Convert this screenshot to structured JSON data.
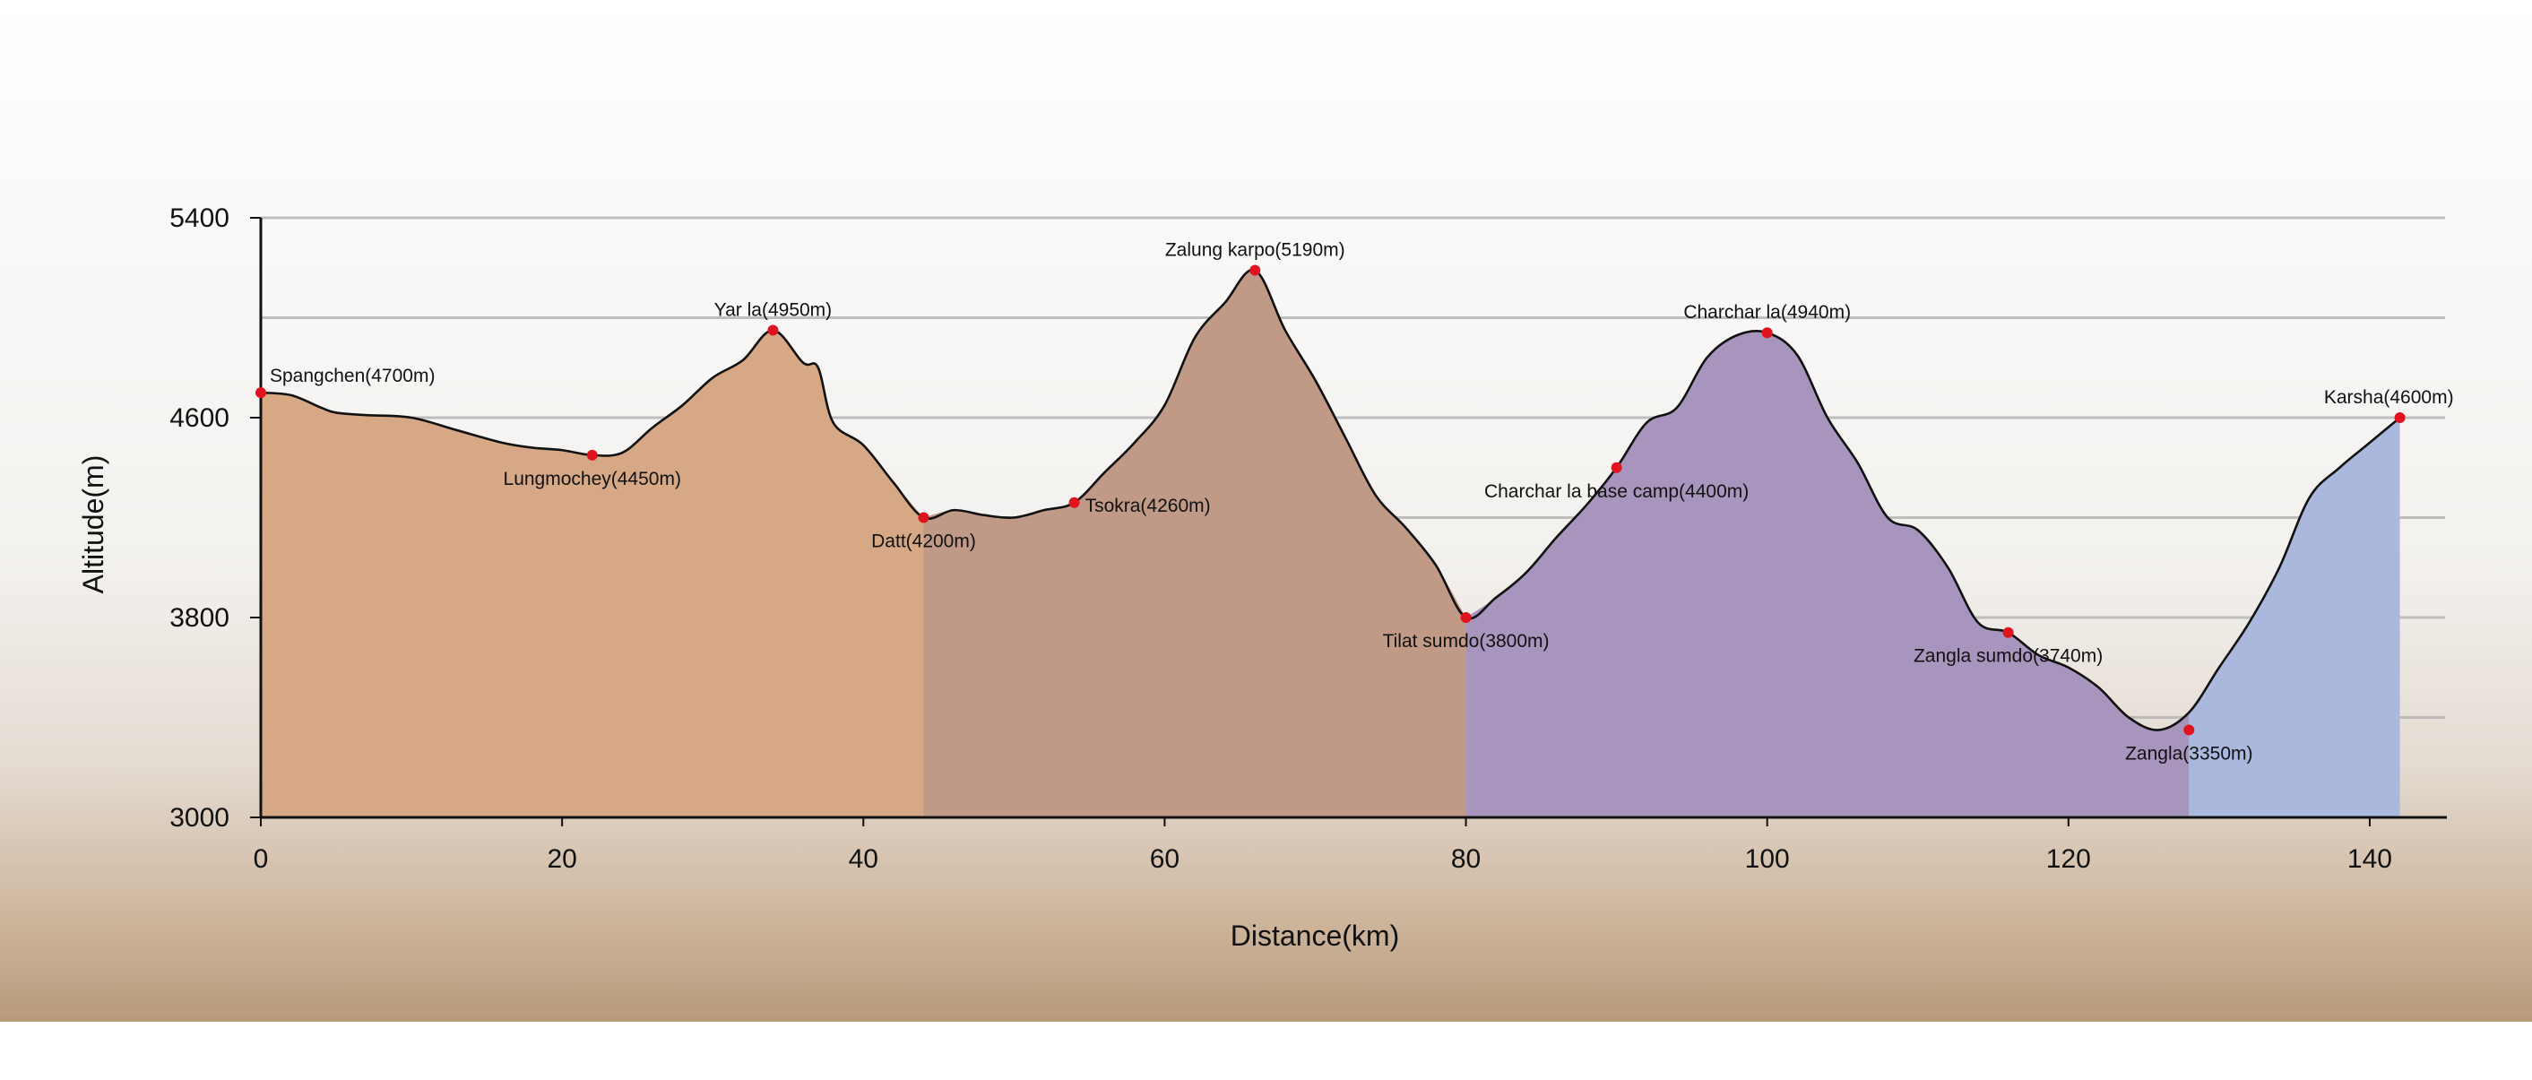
{
  "chart_data": {
    "type": "area",
    "xlabel": "Distance(km)",
    "ylabel": "Altitude(m)",
    "xlim": [
      0,
      145
    ],
    "ylim": [
      3000,
      5400
    ],
    "x_ticks": [
      0,
      20,
      40,
      60,
      80,
      100,
      120,
      140
    ],
    "y_ticks": [
      3000,
      3800,
      4600,
      5400
    ],
    "x_tick_labels": [
      "0",
      "20",
      "40",
      "60",
      "80",
      "100",
      "120",
      "140"
    ],
    "y_tick_labels": [
      "3000",
      "3800",
      "4600",
      "5400"
    ],
    "grid": true,
    "colors": {
      "segment_1": "#d6a886",
      "segment_2": "#c09a87",
      "segment_3": "#a895bd",
      "segment_4": "#a9b8dc",
      "profile_line": "#111111",
      "waypoint_marker": "#e0141e",
      "grid_line": "#b5b5b5",
      "background_bottom": "#b89a7b"
    },
    "profile": {
      "x": [
        0,
        2,
        4,
        5,
        7,
        10,
        13,
        16,
        18,
        20,
        22,
        24,
        26,
        28,
        30,
        32,
        34,
        36,
        37,
        38,
        40,
        42,
        44,
        46,
        48,
        50,
        52,
        54,
        56,
        58,
        60,
        62,
        64,
        66,
        68,
        70,
        72,
        74,
        76,
        78,
        80,
        82,
        84,
        86,
        88,
        90,
        92,
        94,
        96,
        98,
        100,
        102,
        104,
        106,
        108,
        110,
        112,
        114,
        116,
        118,
        120,
        122,
        124,
        126,
        128,
        130,
        132,
        134,
        136,
        138,
        140,
        142
      ],
      "y": [
        4700,
        4690,
        4640,
        4620,
        4610,
        4600,
        4550,
        4500,
        4480,
        4470,
        4450,
        4460,
        4560,
        4650,
        4760,
        4830,
        4950,
        4820,
        4800,
        4580,
        4490,
        4340,
        4200,
        4230,
        4210,
        4200,
        4230,
        4260,
        4380,
        4500,
        4650,
        4920,
        5060,
        5190,
        4950,
        4750,
        4520,
        4290,
        4160,
        4010,
        3800,
        3880,
        3980,
        4120,
        4250,
        4400,
        4580,
        4640,
        4840,
        4930,
        4940,
        4850,
        4600,
        4420,
        4200,
        4150,
        4000,
        3780,
        3740,
        3650,
        3600,
        3520,
        3400,
        3350,
        3420,
        3600,
        3780,
        4000,
        4280,
        4400,
        4500,
        4600
      ]
    },
    "segments": [
      {
        "x_start": 0,
        "x_end": 44
      },
      {
        "x_start": 44,
        "x_end": 80
      },
      {
        "x_start": 80,
        "x_end": 128
      },
      {
        "x_start": 128,
        "x_end": 142
      }
    ],
    "waypoints": [
      {
        "label": "Spangchen(4700m)",
        "x": 0,
        "y": 4700,
        "label_side": "above-right"
      },
      {
        "label": "Lungmochey(4450m)",
        "x": 22,
        "y": 4450,
        "label_side": "below"
      },
      {
        "label": "Yar la(4950m)",
        "x": 34,
        "y": 4950,
        "label_side": "above"
      },
      {
        "label": "Datt(4200m)",
        "x": 44,
        "y": 4200,
        "label_side": "below"
      },
      {
        "label": "Tsokra(4260m)",
        "x": 54,
        "y": 4260,
        "label_side": "right"
      },
      {
        "label": "Zalung karpo(5190m)",
        "x": 66,
        "y": 5190,
        "label_side": "above"
      },
      {
        "label": "Tilat sumdo(3800m)",
        "x": 80,
        "y": 3800,
        "label_side": "below"
      },
      {
        "label": "Charchar la base camp(4400m)",
        "x": 90,
        "y": 4400,
        "label_side": "below"
      },
      {
        "label": "Charchar la(4940m)",
        "x": 100,
        "y": 4940,
        "label_side": "above"
      },
      {
        "label": "Zangla sumdo(3740m)",
        "x": 116,
        "y": 3740,
        "label_side": "below"
      },
      {
        "label": "Zangla(3350m)",
        "x": 128,
        "y": 3350,
        "label_side": "below"
      },
      {
        "label": "Karsha(4600m)",
        "x": 142,
        "y": 4600,
        "label_side": "above"
      }
    ]
  }
}
